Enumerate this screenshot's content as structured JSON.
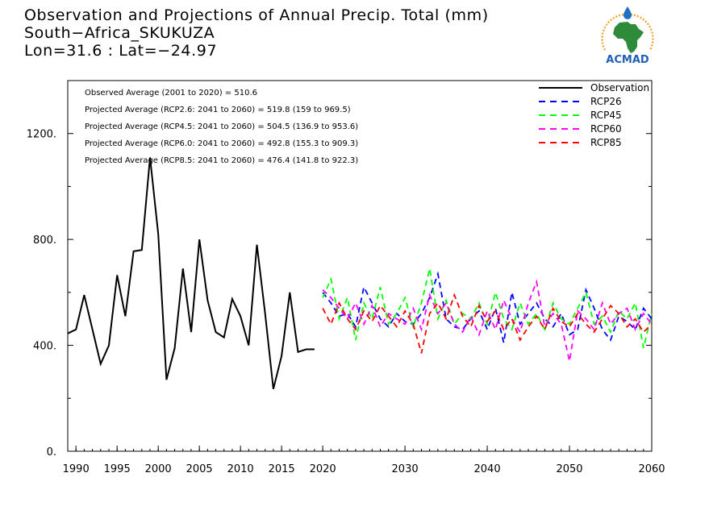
{
  "header": {
    "title_line1": "Observation and Projections of Annual Precip. Total (mm)",
    "title_line2": "South−Africa_SKUKUZA",
    "title_line3": "Lon=31.6 : Lat=−24.97",
    "logo_text": "ACMAD"
  },
  "chart_data": {
    "type": "line",
    "xlim": [
      1989,
      2060
    ],
    "ylim": [
      0,
      1400
    ],
    "y_ticks": [
      0,
      400,
      800,
      1200
    ],
    "y_tick_labels": [
      "0.",
      "400.",
      "800.",
      "1200."
    ],
    "x_ticks": [
      1990,
      1995,
      2000,
      2005,
      2010,
      2015,
      2020,
      2030,
      2040,
      2050,
      2060
    ],
    "x_tick_labels": [
      "1990",
      "1995",
      "2000",
      "2005",
      "2010",
      "2015",
      "2020",
      "2030",
      "2040",
      "2050",
      "2060"
    ],
    "legend_position": "top-right",
    "annotations": [
      "Observed Average (2001 to 2020) = 510.6",
      "Projected Average (RCP2.6: 2041 to 2060) = 519.8 (159 to 969.5)",
      "Projected Average (RCP4.5: 2041 to 2060) = 504.5 (136.9 to 953.6)",
      "Projected Average (RCP6.0: 2041 to 2060) = 492.8 (155.3 to 909.3)",
      "Projected Average (RCP8.5: 2041 to 2060) = 476.4 (141.8 to 922.3)"
    ],
    "series": [
      {
        "name": "Observation",
        "color": "#000000",
        "style": "solid",
        "x": [
          1989,
          1990,
          1991,
          1992,
          1993,
          1994,
          1995,
          1996,
          1997,
          1998,
          1999,
          2000,
          2001,
          2002,
          2003,
          2004,
          2005,
          2006,
          2007,
          2008,
          2009,
          2010,
          2011,
          2012,
          2013,
          2014,
          2015,
          2016,
          2017,
          2018,
          2019
        ],
        "y": [
          445,
          460,
          590,
          460,
          330,
          400,
          665,
          510,
          755,
          760,
          1110,
          820,
          270,
          390,
          690,
          450,
          800,
          570,
          450,
          430,
          575,
          510,
          400,
          780,
          520,
          235,
          360,
          600,
          375,
          385,
          385
        ]
      },
      {
        "name": "RCP26",
        "color": "#0000ff",
        "style": "dashed",
        "x": [
          2020,
          2021,
          2022,
          2023,
          2024,
          2025,
          2026,
          2027,
          2028,
          2029,
          2030,
          2031,
          2032,
          2033,
          2034,
          2035,
          2036,
          2037,
          2038,
          2039,
          2040,
          2041,
          2042,
          2043,
          2044,
          2045,
          2046,
          2047,
          2048,
          2049,
          2050,
          2051,
          2052,
          2053,
          2054,
          2055,
          2056,
          2057,
          2058,
          2059,
          2060
        ],
        "y": [
          600,
          560,
          510,
          520,
          470,
          620,
          560,
          500,
          470,
          520,
          490,
          480,
          520,
          580,
          670,
          500,
          470,
          460,
          500,
          530,
          460,
          540,
          410,
          600,
          480,
          520,
          560,
          500,
          470,
          520,
          440,
          460,
          610,
          540,
          460,
          420,
          510,
          490,
          460,
          540,
          500
        ]
      },
      {
        "name": "RCP45",
        "color": "#00ff00",
        "style": "dashed",
        "x": [
          2020,
          2021,
          2022,
          2023,
          2024,
          2025,
          2026,
          2027,
          2028,
          2029,
          2030,
          2031,
          2032,
          2033,
          2034,
          2035,
          2036,
          2037,
          2038,
          2039,
          2040,
          2041,
          2042,
          2043,
          2044,
          2045,
          2046,
          2047,
          2048,
          2049,
          2050,
          2051,
          2052,
          2053,
          2054,
          2055,
          2056,
          2057,
          2058,
          2059,
          2060
        ],
        "y": [
          580,
          650,
          500,
          580,
          420,
          560,
          500,
          620,
          480,
          520,
          580,
          470,
          560,
          690,
          500,
          570,
          480,
          520,
          500,
          560,
          480,
          600,
          500,
          460,
          560,
          480,
          520,
          460,
          560,
          500,
          480,
          540,
          600,
          480,
          510,
          450,
          530,
          500,
          560,
          390,
          520
        ]
      },
      {
        "name": "RCP60",
        "color": "#ff00ff",
        "style": "dashed",
        "x": [
          2020,
          2021,
          2022,
          2023,
          2024,
          2025,
          2026,
          2027,
          2028,
          2029,
          2030,
          2031,
          2032,
          2033,
          2034,
          2035,
          2036,
          2037,
          2038,
          2039,
          2040,
          2041,
          2042,
          2043,
          2044,
          2045,
          2046,
          2047,
          2048,
          2049,
          2050,
          2051,
          2052,
          2053,
          2054,
          2055,
          2056,
          2057,
          2058,
          2059,
          2060
        ],
        "y": [
          610,
          580,
          540,
          500,
          560,
          480,
          550,
          470,
          520,
          500,
          480,
          540,
          460,
          590,
          520,
          560,
          480,
          450,
          510,
          440,
          530,
          460,
          570,
          500,
          450,
          560,
          640,
          470,
          520,
          480,
          340,
          530,
          500,
          460,
          560,
          480,
          520,
          540,
          460,
          520,
          480
        ]
      },
      {
        "name": "RCP85",
        "color": "#ff0000",
        "style": "dashed",
        "x": [
          2020,
          2021,
          2022,
          2023,
          2024,
          2025,
          2026,
          2027,
          2028,
          2029,
          2030,
          2031,
          2032,
          2033,
          2034,
          2035,
          2036,
          2037,
          2038,
          2039,
          2040,
          2041,
          2042,
          2043,
          2044,
          2045,
          2046,
          2047,
          2048,
          2049,
          2050,
          2051,
          2052,
          2053,
          2054,
          2055,
          2056,
          2057,
          2058,
          2059,
          2060
        ],
        "y": [
          540,
          480,
          560,
          500,
          460,
          530,
          490,
          550,
          510,
          470,
          530,
          480,
          370,
          520,
          560,
          500,
          590,
          510,
          470,
          550,
          490,
          530,
          460,
          500,
          420,
          470,
          510,
          460,
          540,
          490,
          470,
          520,
          480,
          450,
          500,
          550,
          520,
          470,
          500,
          450,
          480
        ]
      }
    ]
  }
}
